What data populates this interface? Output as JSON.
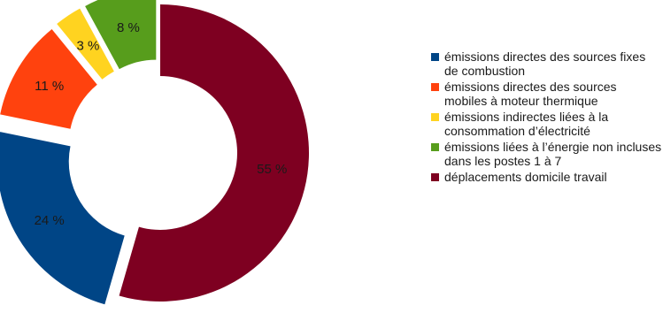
{
  "chart_data": {
    "type": "pie",
    "variant": "exploded donut",
    "title": "",
    "legend_position": "right",
    "slices": [
      {
        "label": "émissions directes des sources fixes de combustion",
        "value": 24,
        "value_label": "24 %",
        "color": "#004586"
      },
      {
        "label": "émissions directes des sources mobiles à moteur thermique",
        "value": 11,
        "value_label": "11 %",
        "color": "#ff420e"
      },
      {
        "label": "émissions indirectes liées à la consommation d’électricité",
        "value": 3,
        "value_label": "3 %",
        "color": "#ffd320"
      },
      {
        "label": "émissions liées à l’énergie non incluses dans les postes 1 à 7",
        "value": 8,
        "value_label": "8 %",
        "color": "#579d1c"
      },
      {
        "label": "déplacements domicile travail",
        "value": 55,
        "value_label": "55 %",
        "color": "#7e0021"
      }
    ]
  }
}
